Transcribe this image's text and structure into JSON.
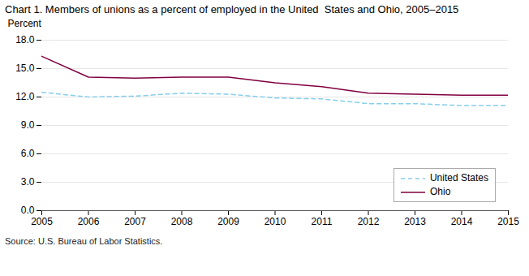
{
  "chart_data": {
    "type": "line",
    "title": "Chart 1. Members of unions as a percent of employed in the United  States and Ohio, 2005–2015",
    "y_label": "Percent",
    "source": "Source: U.S. Bureau of Labor Statistics.",
    "x": [
      2005,
      2006,
      2007,
      2008,
      2009,
      2010,
      2011,
      2012,
      2013,
      2014,
      2015
    ],
    "series": [
      {
        "name": "United States",
        "color": "#87CEEB",
        "line_style": "dashed",
        "values": [
          12.5,
          12.0,
          12.1,
          12.4,
          12.3,
          11.9,
          11.8,
          11.3,
          11.3,
          11.1,
          11.1
        ]
      },
      {
        "name": "Ohio",
        "color": "#800040",
        "line_style": "solid",
        "values": [
          16.3,
          14.1,
          14.0,
          14.1,
          14.1,
          13.5,
          13.1,
          12.4,
          12.3,
          12.2,
          12.2
        ]
      }
    ],
    "xlim": [
      2005,
      2015
    ],
    "xticks": [
      2005,
      2006,
      2007,
      2008,
      2009,
      2010,
      2011,
      2012,
      2013,
      2014,
      2015
    ],
    "ylim": [
      0,
      18.0
    ],
    "yticks": [
      {
        "value": 0.0,
        "label": "0.0"
      },
      {
        "value": 3.0,
        "label": "3.0"
      },
      {
        "value": 6.0,
        "label": "6.0"
      },
      {
        "value": 9.0,
        "label": "9.0"
      },
      {
        "value": 12.0,
        "label": "12.0"
      },
      {
        "value": 15.0,
        "label": "15.0"
      },
      {
        "value": 18.0,
        "label": "18.0"
      }
    ],
    "grid": "y",
    "legend": "lower right"
  }
}
